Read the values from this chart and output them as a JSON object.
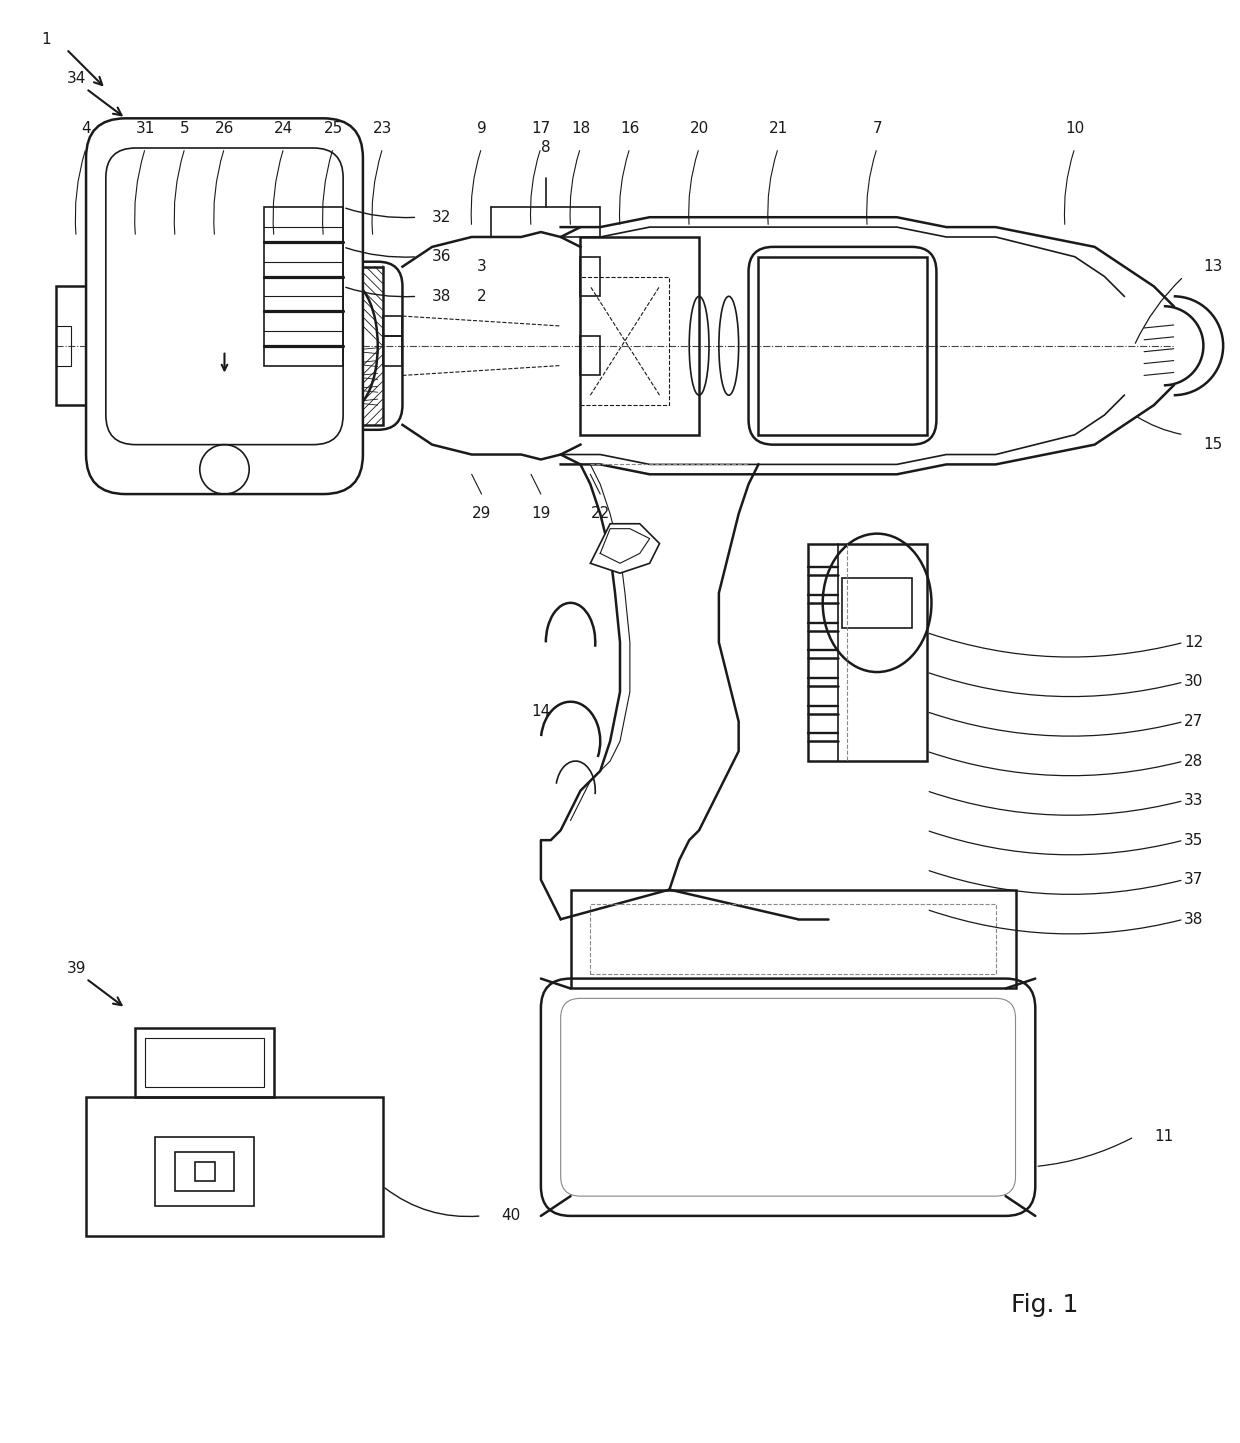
{
  "background_color": "#ffffff",
  "line_color": "#1a1a1a",
  "fig_width": 12.4,
  "fig_height": 14.43,
  "fig_label": "Fig. 1"
}
